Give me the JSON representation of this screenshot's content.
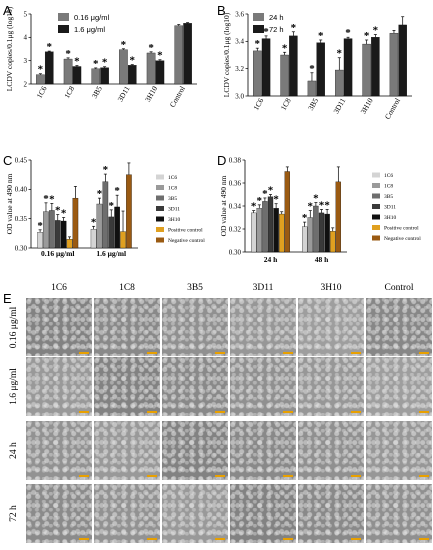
{
  "panels": {
    "A": "A",
    "B": "B",
    "C": "C",
    "D": "D",
    "E": "E"
  },
  "chart_data": [
    {
      "id": "A",
      "type": "bar",
      "categories": [
        "1C6",
        "1C8",
        "3B5",
        "3D11",
        "3H10",
        "Control"
      ],
      "series": [
        {
          "name": "0.16 μg/ml",
          "color": "#7a7a7a",
          "values": [
            2.4,
            3.07,
            2.65,
            3.47,
            3.33,
            4.5
          ],
          "errors": [
            0.04,
            0.05,
            0.04,
            0.04,
            0.05,
            0.05
          ]
        },
        {
          "name": "1.6 μg/ml",
          "color": "#1a1a1a",
          "values": [
            3.38,
            2.75,
            2.7,
            2.8,
            3.0,
            4.6
          ],
          "errors": [
            0.03,
            0.04,
            0.04,
            0.03,
            0.04,
            0.03
          ]
        }
      ],
      "stars": [
        [
          true,
          true
        ],
        [
          true,
          true
        ],
        [
          true,
          true
        ],
        [
          true,
          true
        ],
        [
          true,
          true
        ],
        [
          false,
          false
        ]
      ],
      "ylabel": "LCDV copies/0.1μg (log10)",
      "ylim": [
        2,
        5
      ],
      "yticks": [
        "2",
        "3",
        "4",
        "5"
      ]
    },
    {
      "id": "B",
      "type": "bar",
      "categories": [
        "1C6",
        "1C8",
        "3B5",
        "3D11",
        "3H10",
        "Control"
      ],
      "series": [
        {
          "name": "24 h",
          "color": "#7a7a7a",
          "values": [
            3.33,
            3.3,
            3.11,
            3.19,
            3.38,
            3.46
          ],
          "errors": [
            0.02,
            0.02,
            0.06,
            0.09,
            0.03,
            0.02
          ]
        },
        {
          "name": "72 h",
          "color": "#1a1a1a",
          "values": [
            3.42,
            3.44,
            3.39,
            3.42,
            3.43,
            3.52
          ],
          "errors": [
            0.02,
            0.03,
            0.02,
            0.01,
            0.02,
            0.06
          ]
        }
      ],
      "stars": [
        [
          true,
          true
        ],
        [
          true,
          true
        ],
        [
          true,
          true
        ],
        [
          true,
          true
        ],
        [
          true,
          true
        ],
        [
          false,
          false
        ]
      ],
      "ylabel": "LCDV copies/0.1μg (log10)",
      "ylim": [
        3.0,
        3.6
      ],
      "yticks": [
        "3.0",
        "3.2",
        "3.4",
        "3.6"
      ]
    },
    {
      "id": "C",
      "type": "bar",
      "categories": [
        "0.16 μg/ml",
        "1.6 μg/ml"
      ],
      "series": [
        {
          "name": "1C6",
          "color": "#d4d4d4",
          "values": [
            0.327,
            0.332
          ],
          "errors": [
            0.004,
            0.005
          ]
        },
        {
          "name": "1C8",
          "color": "#9a9a9a",
          "values": [
            0.362,
            0.375
          ],
          "errors": [
            0.015,
            0.01
          ]
        },
        {
          "name": "3B5",
          "color": "#6e6e6e",
          "values": [
            0.364,
            0.413
          ],
          "errors": [
            0.012,
            0.013
          ]
        },
        {
          "name": "3D11",
          "color": "#3a3a3a",
          "values": [
            0.347,
            0.353
          ],
          "errors": [
            0.01,
            0.012
          ]
        },
        {
          "name": "3H10",
          "color": "#101010",
          "values": [
            0.346,
            0.37
          ],
          "errors": [
            0.006,
            0.02
          ]
        },
        {
          "name": "Positive control",
          "color": "#e0a020",
          "values": [
            0.315,
            0.328
          ],
          "errors": [
            0.004,
            0.035
          ]
        },
        {
          "name": "Negative control",
          "color": "#9a5a12",
          "values": [
            0.385,
            0.425
          ],
          "errors": [
            0.02,
            0.02
          ]
        }
      ],
      "stars": [
        [
          true,
          true,
          true,
          true,
          true,
          false,
          false
        ],
        [
          true,
          true,
          true,
          true,
          true,
          false,
          false
        ]
      ],
      "ylabel": "OD value at 490 nm",
      "ylim": [
        0.3,
        0.45
      ],
      "yticks": [
        "0.30",
        "0.35",
        "0.40",
        "0.45"
      ]
    },
    {
      "id": "D",
      "type": "bar",
      "categories": [
        "24 h",
        "48 h"
      ],
      "series": [
        {
          "name": "1C6",
          "color": "#d4d4d4",
          "values": [
            0.334,
            0.322
          ],
          "errors": [
            0.002,
            0.004
          ]
        },
        {
          "name": "1C8",
          "color": "#9a9a9a",
          "values": [
            0.338,
            0.33
          ],
          "errors": [
            0.003,
            0.006
          ]
        },
        {
          "name": "3B5",
          "color": "#6e6e6e",
          "values": [
            0.344,
            0.34
          ],
          "errors": [
            0.003,
            0.003
          ]
        },
        {
          "name": "3D11",
          "color": "#3a3a3a",
          "values": [
            0.348,
            0.334
          ],
          "errors": [
            0.002,
            0.003
          ]
        },
        {
          "name": "3H10",
          "color": "#101010",
          "values": [
            0.338,
            0.333
          ],
          "errors": [
            0.004,
            0.004
          ]
        },
        {
          "name": "Positive control",
          "color": "#e0a020",
          "values": [
            0.333,
            0.318
          ],
          "errors": [
            0.002,
            0.003
          ]
        },
        {
          "name": "Negative control",
          "color": "#9a5a12",
          "values": [
            0.37,
            0.361
          ],
          "errors": [
            0.004,
            0.013
          ]
        }
      ],
      "stars": [
        [
          true,
          true,
          true,
          true,
          true,
          false,
          false
        ],
        [
          true,
          true,
          true,
          true,
          true,
          false,
          false
        ]
      ],
      "ylabel": "OD value at 490 nm",
      "ylim": [
        0.3,
        0.38
      ],
      "yticks": [
        "0.30",
        "0.32",
        "0.34",
        "0.36",
        "0.38"
      ]
    }
  ],
  "micrographs": {
    "columns": [
      "1C6",
      "1C8",
      "3B5",
      "3D11",
      "3H10",
      "Control"
    ],
    "rows": [
      "0.16 μg/ml",
      "1.6 μg/ml",
      "24 h",
      "72 h"
    ]
  }
}
